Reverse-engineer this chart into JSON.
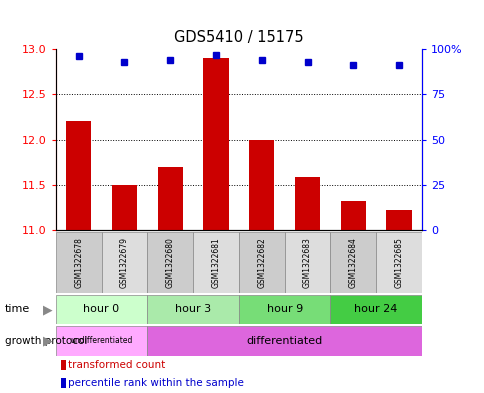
{
  "title": "GDS5410 / 15175",
  "samples": [
    "GSM1322678",
    "GSM1322679",
    "GSM1322680",
    "GSM1322681",
    "GSM1322682",
    "GSM1322683",
    "GSM1322684",
    "GSM1322685"
  ],
  "transformed_counts": [
    12.2,
    11.5,
    11.7,
    12.9,
    12.0,
    11.58,
    11.32,
    11.22
  ],
  "percentile_ranks": [
    96,
    93,
    94,
    97,
    94,
    93,
    91,
    91
  ],
  "ylim_left": [
    11,
    13
  ],
  "ylim_right": [
    0,
    100
  ],
  "yticks_left": [
    11,
    11.5,
    12,
    12.5,
    13
  ],
  "yticks_right": [
    0,
    25,
    50,
    75,
    100
  ],
  "bar_color": "#cc0000",
  "dot_color": "#0000cc",
  "bar_bottom": 11,
  "time_colors": [
    "#ccffcc",
    "#aaeaaa",
    "#77dd77",
    "#44cc44"
  ],
  "undiff_color": "#ffaaff",
  "diff_color": "#dd66dd",
  "sample_colors": [
    "#cccccc",
    "#dddddd"
  ],
  "grid_color": "#000000",
  "bg_color": "#ffffff",
  "legend_bar_label": "transformed count",
  "legend_dot_label": "percentile rank within the sample",
  "time_label": "time",
  "protocol_label": "growth protocol"
}
